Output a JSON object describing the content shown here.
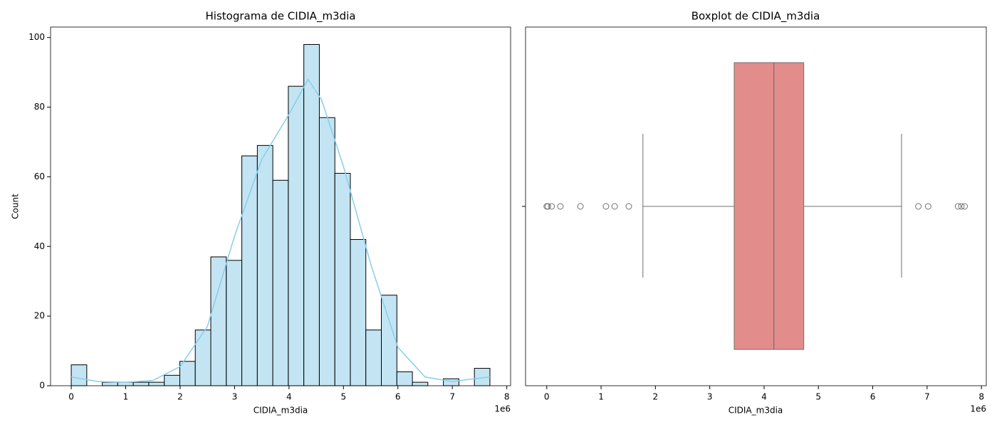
{
  "chart_data": [
    {
      "type": "histogram",
      "title": "Histograma de CIDIA_m3dia",
      "x_label": "CIDIA_m3dia",
      "y_label": "Count",
      "x_offset_label": "1e6",
      "bins": [
        0,
        0.285,
        0.57,
        0.854,
        1.139,
        1.424,
        1.709,
        1.994,
        2.278,
        2.563,
        2.848,
        3.133,
        3.418,
        3.702,
        3.987,
        4.272,
        4.557,
        4.842,
        5.126,
        5.411,
        5.696,
        5.981,
        6.266,
        6.55,
        6.835,
        7.12,
        7.405,
        7.69
      ],
      "values": [
        6,
        0,
        1,
        1,
        1,
        1,
        3,
        7,
        16,
        37,
        36,
        66,
        69,
        59,
        86,
        98,
        77,
        61,
        42,
        16,
        26,
        4,
        1,
        0,
        2,
        0,
        5
      ],
      "color": "#c3e4f3",
      "edge_color": "#000000",
      "kde": {
        "color": "#87ceeb",
        "x": [
          0,
          0.5,
          1,
          1.5,
          2,
          2.5,
          3,
          3.5,
          4,
          4.35,
          4.6,
          5,
          5.5,
          6,
          6.5,
          7,
          7.4,
          7.69
        ],
        "y": [
          2.5,
          1.2,
          1,
          1.5,
          5.5,
          17,
          43,
          65,
          78,
          88,
          82,
          63,
          35,
          11,
          2.5,
          1.2,
          2,
          2.5
        ]
      },
      "xlim": [
        -0.38,
        8.07
      ],
      "ylim": [
        0,
        103
      ],
      "xticks": [
        0,
        1,
        2,
        3,
        4,
        5,
        6,
        7,
        8
      ],
      "yticks": [
        0,
        20,
        40,
        60,
        80,
        100
      ]
    },
    {
      "type": "box",
      "title": "Boxplot de CIDIA_m3dia",
      "x_label": "CIDIA_m3dia",
      "x_offset_label": "1e6",
      "whisker_low": 1.77,
      "q1": 3.45,
      "median": 4.18,
      "q3": 4.73,
      "whisker_high": 6.53,
      "outliers": [
        0,
        0.02,
        0.09,
        0.25,
        0.62,
        1.09,
        1.25,
        1.51,
        6.84,
        7.02,
        7.57,
        7.63,
        7.69
      ],
      "color": "#e38c8c",
      "line_color": "#707070",
      "xlim": [
        -0.39,
        8.09
      ],
      "xticks": [
        0,
        1,
        2,
        3,
        4,
        5,
        6,
        7,
        8
      ]
    }
  ]
}
